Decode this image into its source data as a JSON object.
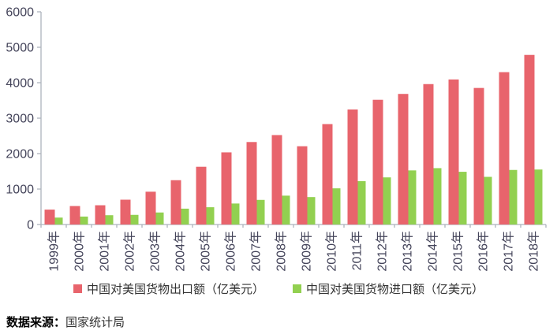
{
  "chart_data": {
    "type": "bar",
    "title": "",
    "xlabel": "",
    "ylabel": "",
    "grid": false,
    "legend_position": "bottom",
    "ylim": [
      0,
      6000
    ],
    "yticks": [
      0,
      1000,
      2000,
      3000,
      4000,
      5000,
      6000
    ],
    "categories": [
      "1999年",
      "2000年",
      "2001年",
      "2002年",
      "2003年",
      "2004年",
      "2005年",
      "2006年",
      "2007年",
      "2008年",
      "2009年",
      "2010年",
      "2011年",
      "2012年",
      "2013年",
      "2014年",
      "2015年",
      "2016年",
      "2017年",
      "2018年"
    ],
    "series": [
      {
        "name": "中国对美国货物出口额（亿美元）",
        "color": "#E8646C",
        "values": [
          420,
          521,
          543,
          700,
          925,
          1250,
          1629,
          2035,
          2327,
          2523,
          2208,
          2833,
          3245,
          3518,
          3684,
          3961,
          4092,
          3852,
          4298,
          4784
        ]
      },
      {
        "name": "中国对美国货物进口额（亿美元）",
        "color": "#92D050",
        "values": [
          195,
          224,
          262,
          272,
          339,
          447,
          487,
          592,
          694,
          814,
          774,
          1020,
          1222,
          1329,
          1526,
          1590,
          1487,
          1344,
          1539,
          1551
        ]
      }
    ]
  },
  "source": {
    "prefix": "数据来源：",
    "name": "国家统计局"
  },
  "style": {
    "axis_line_color": "#AEB4BD",
    "axis_text_color": "#44445A",
    "tick_font_size": 15,
    "x_label_font_size": 15
  }
}
